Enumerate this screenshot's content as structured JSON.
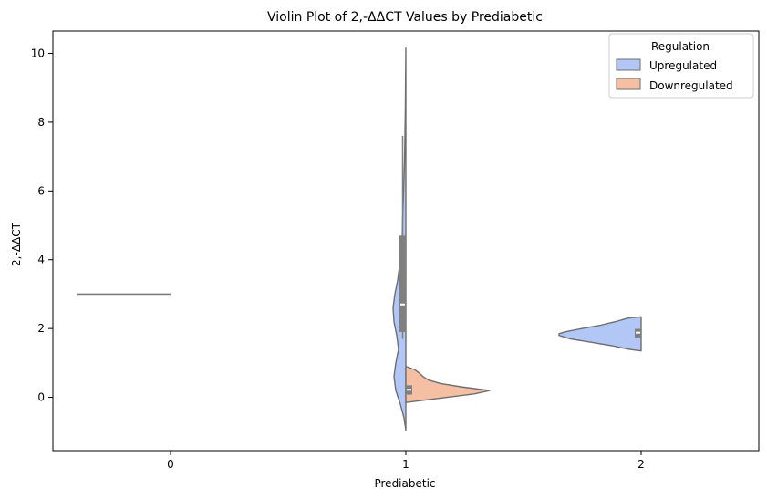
{
  "chart_data": {
    "type": "violin",
    "title": "Violin Plot of 2,-ΔΔCT Values by Prediabetic",
    "xlabel": "Prediabetic",
    "ylabel": "2,-ΔΔCT",
    "categories": [
      "0",
      "1",
      "2"
    ],
    "ylim": [
      -1.55,
      10.65
    ],
    "yticks": [
      0,
      2,
      4,
      6,
      8,
      10
    ],
    "grid": false,
    "legend": {
      "title": "Regulation",
      "placement": "top-right",
      "entries": [
        "Upregulated",
        "Downregulated"
      ]
    },
    "series": [
      {
        "name": "Upregulated",
        "color": "#b3c7f7",
        "side": "left",
        "violins": [
          {
            "category": "0",
            "profile": [],
            "box": null,
            "median": 3.0
          },
          {
            "category": "1",
            "profile": [
              [
                -0.95,
                0.0
              ],
              [
                -0.6,
                0.02
              ],
              [
                -0.2,
                0.06
              ],
              [
                0.2,
                0.11
              ],
              [
                0.6,
                0.13
              ],
              [
                1.0,
                0.11
              ],
              [
                1.4,
                0.08
              ],
              [
                1.8,
                0.1
              ],
              [
                2.2,
                0.13
              ],
              [
                2.6,
                0.14
              ],
              [
                3.0,
                0.12
              ],
              [
                3.4,
                0.09
              ],
              [
                3.8,
                0.07
              ],
              [
                4.2,
                0.05
              ],
              [
                4.6,
                0.04
              ],
              [
                5.2,
                0.035
              ],
              [
                6.0,
                0.025
              ],
              [
                6.8,
                0.015
              ],
              [
                7.6,
                0.01
              ],
              [
                8.5,
                0.005
              ],
              [
                9.3,
                0.003
              ],
              [
                10.15,
                0.0
              ]
            ],
            "box": {
              "q1": 1.9,
              "q3": 4.7,
              "median": 2.7,
              "whisker_low": 1.7,
              "whisker_high": 7.6
            }
          },
          {
            "category": "2",
            "profile": [
              [
                1.35,
                0.0
              ],
              [
                1.4,
                0.14
              ],
              [
                1.5,
                0.32
              ],
              [
                1.6,
                0.55
              ],
              [
                1.7,
                0.78
              ],
              [
                1.8,
                0.9
              ],
              [
                1.85,
                0.9
              ],
              [
                1.9,
                0.84
              ],
              [
                2.0,
                0.65
              ],
              [
                2.1,
                0.44
              ],
              [
                2.2,
                0.28
              ],
              [
                2.3,
                0.15
              ],
              [
                2.34,
                0.0
              ]
            ],
            "box": {
              "q1": 1.74,
              "q3": 1.99,
              "median": 1.88,
              "whisker_low": 1.74,
              "whisker_high": 1.99
            }
          }
        ]
      },
      {
        "name": "Downregulated",
        "color": "#f5bfa3",
        "side": "right",
        "violins": [
          {
            "category": "1",
            "profile": [
              [
                -0.15,
                0.0
              ],
              [
                -0.1,
                0.15
              ],
              [
                0.0,
                0.45
              ],
              [
                0.1,
                0.75
              ],
              [
                0.2,
                0.92
              ],
              [
                0.3,
                0.62
              ],
              [
                0.4,
                0.38
              ],
              [
                0.5,
                0.25
              ],
              [
                0.6,
                0.19
              ],
              [
                0.7,
                0.15
              ],
              [
                0.8,
                0.1
              ],
              [
                0.9,
                0.0
              ]
            ],
            "box": {
              "q1": 0.08,
              "q3": 0.35,
              "median": 0.22,
              "whisker_low": 0.08,
              "whisker_high": 0.35
            }
          }
        ]
      }
    ]
  }
}
